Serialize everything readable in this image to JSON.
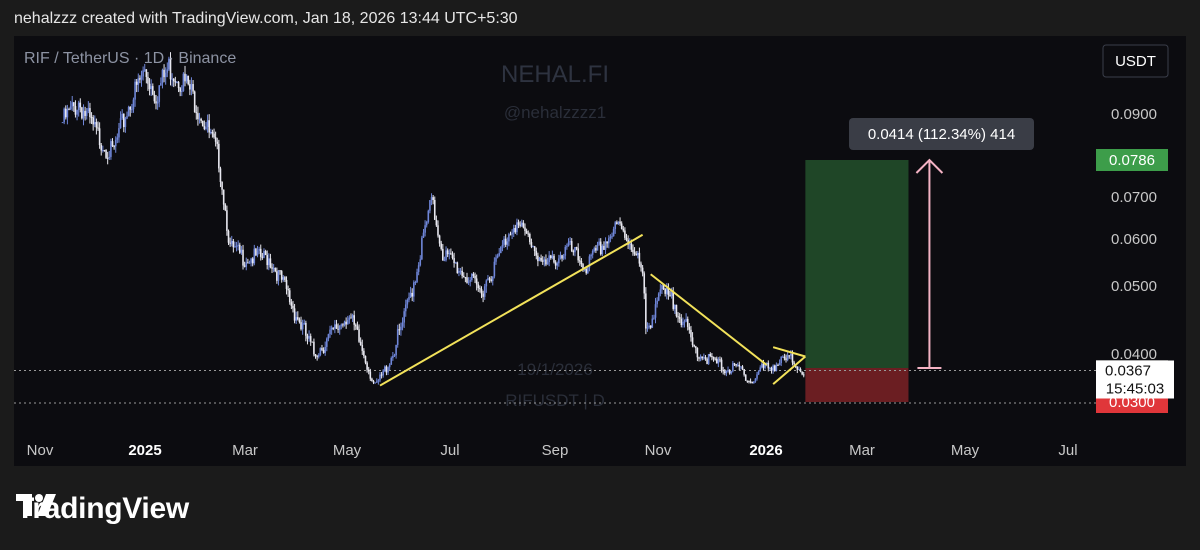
{
  "header": {
    "caption": "nehalzzz created with TradingView.com, Jan 18, 2026 13:44 UTC+5:30"
  },
  "chart": {
    "symbol_line": "RIF / TetherUS · 1D · Binance",
    "watermark_title": "NEHAL.FI",
    "watermark_handle": "@nehalzzzz1",
    "watermark_date": "19/1/2026",
    "watermark_symbol": "RIFUSDT | D",
    "currency_button": "USDT",
    "measure_label": "0.0414 (112.34%) 414",
    "current_price_label": "0.0367",
    "countdown_label": "15:45:03",
    "colors": {
      "candle": "#6f86d8",
      "trendline": "#f2e25a",
      "target": "#3d9d4a",
      "stop": "#e0363a",
      "arrow": "#f4b3c4"
    }
  },
  "brand": {
    "name": "TradingView",
    "icon": "tradingview-logo-icon"
  },
  "chart_data": {
    "type": "line",
    "title": "RIF / TetherUS · 1D · Binance",
    "xlabel": "",
    "ylabel": "",
    "ylim": [
      0.021,
      0.102
    ],
    "x_ticks": [
      "Nov",
      "2025",
      "Mar",
      "May",
      "Jul",
      "Sep",
      "Nov",
      "2026",
      "Mar",
      "May",
      "Jul"
    ],
    "y_ticks": [
      "0.0900",
      "0.0700",
      "0.0600",
      "0.0500",
      "0.0400"
    ],
    "price_labels": [
      {
        "value": "0.0786",
        "color": "#3d9d4a"
      },
      {
        "value": "0.0366",
        "color": "#5c5c5c"
      },
      {
        "value": "0.0300",
        "color": "#e0363a"
      }
    ],
    "series": [
      {
        "values": [
          [
            "2024-10-15",
            0.088
          ],
          [
            "2024-10-25",
            0.093
          ],
          [
            "2024-11-05",
            0.085
          ],
          [
            "2024-11-15",
            0.08
          ],
          [
            "2024-11-25",
            0.092
          ],
          [
            "2024-12-05",
            0.101
          ],
          [
            "2024-12-12",
            0.095
          ],
          [
            "2024-12-20",
            0.102
          ],
          [
            "2025-01-01",
            0.097
          ],
          [
            "2025-01-10",
            0.089
          ],
          [
            "2025-01-20",
            0.079
          ],
          [
            "2025-01-27",
            0.058
          ],
          [
            "2025-02-05",
            0.056
          ],
          [
            "2025-02-20",
            0.056
          ],
          [
            "2025-03-05",
            0.048
          ],
          [
            "2025-03-20",
            0.04
          ],
          [
            "2025-04-01",
            0.043
          ],
          [
            "2025-04-10",
            0.046
          ],
          [
            "2025-04-20",
            0.04
          ],
          [
            "2025-04-27",
            0.033
          ],
          [
            "2025-05-05",
            0.038
          ],
          [
            "2025-05-15",
            0.045
          ],
          [
            "2025-05-22",
            0.052
          ],
          [
            "2025-06-01",
            0.069
          ],
          [
            "2025-06-08",
            0.057
          ],
          [
            "2025-06-20",
            0.053
          ],
          [
            "2025-07-01",
            0.049
          ],
          [
            "2025-07-10",
            0.054
          ],
          [
            "2025-07-22",
            0.064
          ],
          [
            "2025-08-01",
            0.06
          ],
          [
            "2025-08-10",
            0.054
          ],
          [
            "2025-08-25",
            0.058
          ],
          [
            "2025-09-05",
            0.054
          ],
          [
            "2025-09-18",
            0.06
          ],
          [
            "2025-09-25",
            0.063
          ],
          [
            "2025-10-05",
            0.058
          ],
          [
            "2025-10-10",
            0.052
          ],
          [
            "2025-10-12",
            0.043
          ],
          [
            "2025-10-20",
            0.049
          ],
          [
            "2025-11-01",
            0.047
          ],
          [
            "2025-11-10",
            0.041
          ],
          [
            "2025-11-20",
            0.039
          ],
          [
            "2025-12-01",
            0.037
          ],
          [
            "2025-12-10",
            0.037
          ],
          [
            "2025-12-17",
            0.034
          ],
          [
            "2025-12-22",
            0.037
          ],
          [
            "2026-01-01",
            0.038
          ],
          [
            "2026-01-10",
            0.039
          ],
          [
            "2026-01-18",
            0.0367
          ]
        ]
      }
    ],
    "trendlines": [
      {
        "from": [
          "2025-04-30",
          0.0335
        ],
        "to": [
          "2025-10-10",
          0.061
        ]
      },
      {
        "from": [
          "2025-10-15",
          0.0525
        ],
        "to": [
          "2025-12-26",
          0.0378
        ]
      },
      {
        "from": [
          "2025-12-30",
          0.041
        ],
        "to": [
          "2026-01-19",
          0.0395
        ]
      },
      {
        "from": [
          "2025-12-30",
          0.0338
        ],
        "to": [
          "2026-01-19",
          0.0395
        ]
      }
    ],
    "position": {
      "start": "2026-01-19",
      "end": "2026-03-24",
      "entry": 0.0372,
      "target": 0.0786,
      "stop": 0.03
    },
    "measure_arrow": {
      "date": "2026-04-06",
      "from": 0.0372,
      "to": 0.0786
    }
  }
}
